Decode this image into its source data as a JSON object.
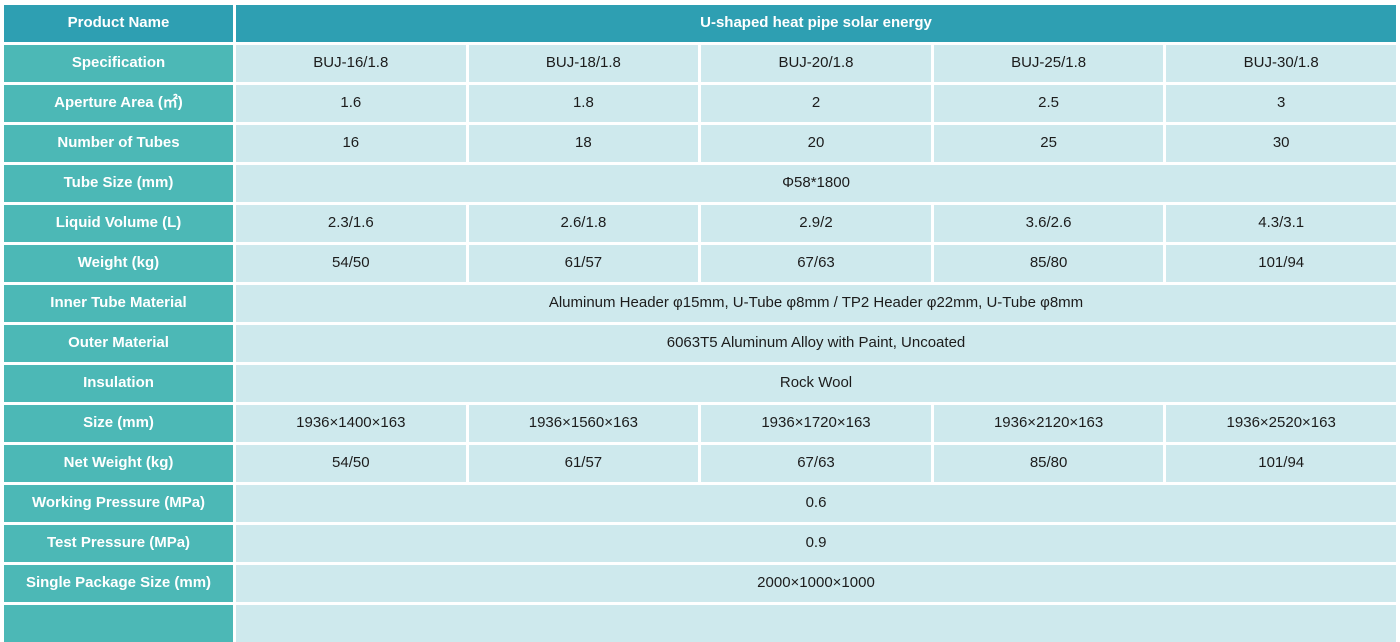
{
  "table": {
    "title_label": "Product Name",
    "title_value": "U-shaped heat pipe solar energy",
    "rows": [
      {
        "label": "Specification",
        "cells": [
          "BUJ-16/1.8",
          "BUJ-18/1.8",
          "BUJ-20/1.8",
          "BUJ-25/1.8",
          "BUJ-30/1.8"
        ]
      },
      {
        "label": "Aperture Area (㎡)",
        "cells": [
          "1.6",
          "1.8",
          "2",
          "2.5",
          "3"
        ]
      },
      {
        "label": "Number of Tubes",
        "cells": [
          "16",
          "18",
          "20",
          "25",
          "30"
        ]
      },
      {
        "label": "Tube Size (mm)",
        "span": "Φ58*1800"
      },
      {
        "label": "Liquid Volume (L)",
        "cells": [
          "2.3/1.6",
          "2.6/1.8",
          "2.9/2",
          "3.6/2.6",
          "4.3/3.1"
        ]
      },
      {
        "label": "Weight (kg)",
        "cells": [
          "54/50",
          "61/57",
          "67/63",
          "85/80",
          "101/94"
        ]
      },
      {
        "label": "Inner Tube Material",
        "span": "Aluminum Header φ15mm, U-Tube φ8mm / TP2 Header φ22mm, U-Tube φ8mm"
      },
      {
        "label": "Outer Material",
        "span": "6063T5 Aluminum Alloy with Paint, Uncoated"
      },
      {
        "label": "Insulation",
        "span": "Rock Wool"
      },
      {
        "label": "Size (mm)",
        "cells": [
          "1936×1400×163",
          "1936×1560×163",
          "1936×1720×163",
          "1936×2120×163",
          "1936×2520×163"
        ]
      },
      {
        "label": "Net Weight (kg)",
        "cells": [
          "54/50",
          "61/57",
          "67/63",
          "85/80",
          "101/94"
        ]
      },
      {
        "label": "Working Pressure (MPa)",
        "span": "0.6"
      },
      {
        "label": "Test Pressure (MPa)",
        "span": "0.9"
      },
      {
        "label": "Single Package Size (mm)",
        "span": "2000×1000×1000"
      }
    ],
    "colors": {
      "header_bg": "#2E9FB2",
      "label_bg": "#4CB8B6",
      "cell_bg": "#CEE9ED",
      "gap": "#FFFFFF",
      "header_text": "#FFFFFF",
      "cell_text": "#1C1C1C"
    }
  }
}
